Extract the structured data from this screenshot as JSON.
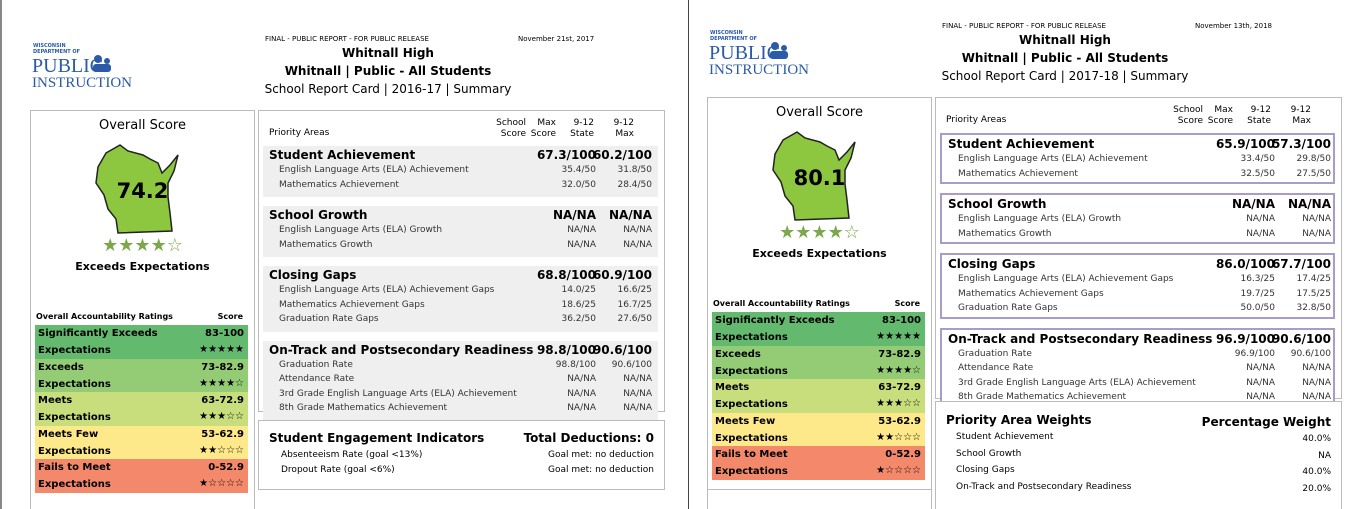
{
  "reports": [
    {
      "header": {
        "release": "FINAL - PUBLIC REPORT - FOR PUBLIC RELEASE",
        "date": "November 21st, 2017",
        "school": "Whitnall High",
        "subtitle": "Whitnall | Public - All Students",
        "report": "School Report Card | 2016-17 | Summary"
      },
      "logo": {
        "top": "WISCONSIN",
        "sub": "DEPARTMENT OF",
        "line1": "PUBLIC",
        "line2": "INSTRUCTION"
      },
      "overall": {
        "title": "Overall Score",
        "score": "74.2",
        "stars": "★★★★☆",
        "rating": "Exceeds Expectations"
      },
      "ratings": {
        "headers": [
          "Overall Accountability Ratings",
          "Score"
        ],
        "rows": [
          {
            "label": "Significantly Exceeds",
            "label2": "Expectations",
            "range": "83-100",
            "stars": "★★★★★",
            "color": "#63b96e"
          },
          {
            "label": "Exceeds",
            "label2": "Expectations",
            "range": "73-82.9",
            "stars": "★★★★☆",
            "color": "#93cc75"
          },
          {
            "label": "Meets",
            "label2": "Expectations",
            "range": "63-72.9",
            "stars": "★★★☆☆",
            "color": "#c8de7c"
          },
          {
            "label": "Meets Few",
            "label2": "Expectations",
            "range": "53-62.9",
            "stars": "★★☆☆☆",
            "color": "#fde88a"
          },
          {
            "label": "Fails to Meet",
            "label2": "Expectations",
            "range": "0-52.9",
            "stars": "★☆☆☆☆",
            "color": "#f3896a"
          }
        ]
      },
      "priority": {
        "label": "Priority Areas",
        "columns": [
          "School Score",
          "Max Score",
          "9-12 State",
          "9-12 Max"
        ],
        "sections": [
          {
            "name": "Student Achievement",
            "score": "67.3/100",
            "state": "60.2/100",
            "rows": [
              [
                "English Language Arts (ELA) Achievement",
                "35.4/50",
                "31.8/50"
              ],
              [
                "Mathematics Achievement",
                "32.0/50",
                "28.4/50"
              ]
            ]
          },
          {
            "name": "School Growth",
            "score": "NA/NA",
            "state": "NA/NA",
            "rows": [
              [
                "English Language Arts (ELA) Growth",
                "NA/NA",
                "NA/NA"
              ],
              [
                "Mathematics Growth",
                "NA/NA",
                "NA/NA"
              ]
            ]
          },
          {
            "name": "Closing Gaps",
            "score": "68.8/100",
            "state": "60.9/100",
            "rows": [
              [
                "English Language Arts (ELA) Achievement Gaps",
                "14.0/25",
                "16.6/25"
              ],
              [
                "Mathematics Achievement Gaps",
                "18.6/25",
                "16.7/25"
              ],
              [
                "Graduation Rate Gaps",
                "36.2/50",
                "27.6/50"
              ]
            ]
          },
          {
            "name": "On-Track and Postsecondary Readiness",
            "score": "98.8/100",
            "state": "90.6/100",
            "rows": [
              [
                "Graduation Rate",
                "98.8/100",
                "90.6/100"
              ],
              [
                "Attendance Rate",
                "NA/NA",
                "NA/NA"
              ],
              [
                "3rd Grade English Language Arts (ELA) Achievement",
                "NA/NA",
                "NA/NA"
              ],
              [
                "8th Grade Mathematics Achievement",
                "NA/NA",
                "NA/NA"
              ]
            ]
          }
        ]
      },
      "engagement": {
        "title": "Student Engagement Indicators",
        "total": "Total Deductions: 0",
        "rows": [
          [
            "Absenteeism Rate (goal <13%)",
            "Goal met: no deduction"
          ],
          [
            "Dropout Rate (goal <6%)",
            "Goal met: no deduction"
          ]
        ]
      }
    },
    {
      "header": {
        "release": "FINAL - PUBLIC REPORT - FOR PUBLIC RELEASE",
        "date": "November 13th, 2018",
        "school": "Whitnall High",
        "subtitle": "Whitnall | Public - All Students",
        "report": "School Report Card | 2017-18 | Summary"
      },
      "logo": {
        "top": "WISCONSIN",
        "sub": "DEPARTMENT OF",
        "line1": "PUBLIC",
        "line2": "INSTRUCTION"
      },
      "overall": {
        "title": "Overall Score",
        "score": "80.1",
        "stars": "★★★★☆",
        "rating": "Exceeds Expectations"
      },
      "ratings": {
        "headers": [
          "Overall Accountability Ratings",
          "Score"
        ],
        "rows": [
          {
            "label": "Significantly Exceeds",
            "label2": "Expectations",
            "range": "83-100",
            "stars": "★★★★★",
            "color": "#63b96e"
          },
          {
            "label": "Exceeds",
            "label2": "Expectations",
            "range": "73-82.9",
            "stars": "★★★★☆",
            "color": "#93cc75"
          },
          {
            "label": "Meets",
            "label2": "Expectations",
            "range": "63-72.9",
            "stars": "★★★☆☆",
            "color": "#c8de7c"
          },
          {
            "label": "Meets Few",
            "label2": "Expectations",
            "range": "53-62.9",
            "stars": "★★☆☆☆",
            "color": "#fde88a"
          },
          {
            "label": "Fails to Meet",
            "label2": "Expectations",
            "range": "0-52.9",
            "stars": "★☆☆☆☆",
            "color": "#f3896a"
          }
        ]
      },
      "priority": {
        "label": "Priority Areas",
        "columns": [
          "School Score",
          "Max Score",
          "9-12 State",
          "9-12 Max"
        ],
        "section_border": "#a99bcb",
        "sections": [
          {
            "name": "Student Achievement",
            "score": "65.9/100",
            "state": "57.3/100",
            "rows": [
              [
                "English Language Arts (ELA) Achievement",
                "33.4/50",
                "29.8/50"
              ],
              [
                "Mathematics Achievement",
                "32.5/50",
                "27.5/50"
              ]
            ]
          },
          {
            "name": "School Growth",
            "score": "NA/NA",
            "state": "NA/NA",
            "rows": [
              [
                "English Language Arts (ELA) Growth",
                "NA/NA",
                "NA/NA"
              ],
              [
                "Mathematics Growth",
                "NA/NA",
                "NA/NA"
              ]
            ]
          },
          {
            "name": "Closing Gaps",
            "score": "86.0/100",
            "state": "67.7/100",
            "rows": [
              [
                "English Language Arts (ELA) Achievement Gaps",
                "16.3/25",
                "17.4/25"
              ],
              [
                "Mathematics Achievement Gaps",
                "19.7/25",
                "17.5/25"
              ],
              [
                "Graduation Rate Gaps",
                "50.0/50",
                "32.8/50"
              ]
            ]
          },
          {
            "name": "On-Track and Postsecondary Readiness",
            "score": "96.9/100",
            "state": "90.6/100",
            "rows": [
              [
                "Graduation Rate",
                "96.9/100",
                "90.6/100"
              ],
              [
                "Attendance Rate",
                "NA/NA",
                "NA/NA"
              ],
              [
                "3rd Grade English Language Arts (ELA) Achievement",
                "NA/NA",
                "NA/NA"
              ],
              [
                "8th Grade Mathematics Achievement",
                "NA/NA",
                "NA/NA"
              ]
            ]
          }
        ]
      },
      "weights": {
        "title": "Priority Area Weights",
        "header": "Percentage Weight",
        "rows": [
          [
            "Student Achievement",
            "40.0%"
          ],
          [
            "School Growth",
            "NA"
          ],
          [
            "Closing Gaps",
            "40.0%"
          ],
          [
            "On-Track and Postsecondary Readiness",
            "20.0%"
          ]
        ]
      }
    }
  ]
}
